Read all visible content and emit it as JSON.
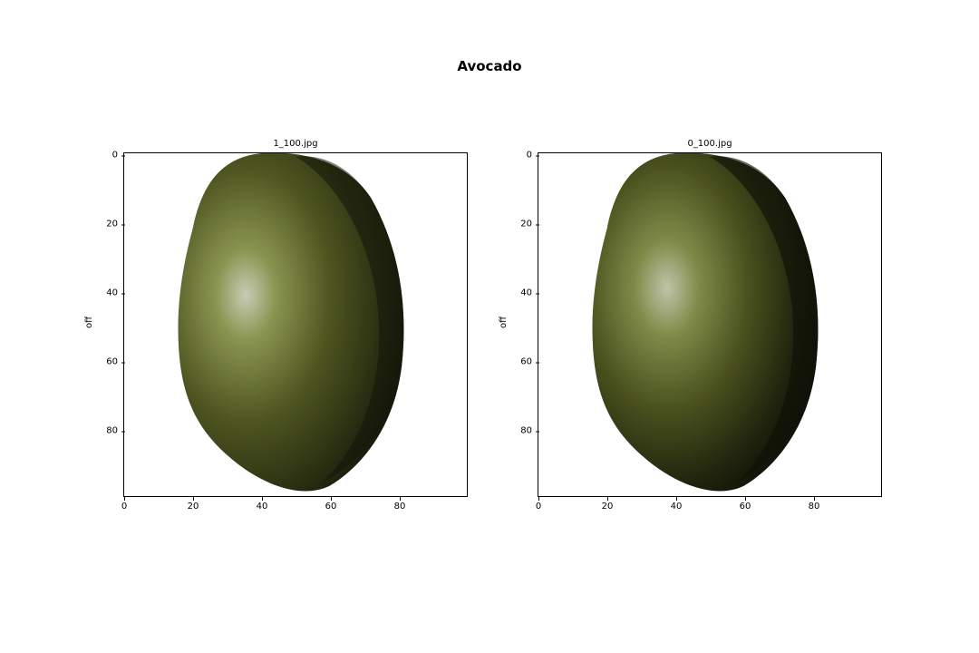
{
  "figure": {
    "title": "Avocado",
    "panels": [
      {
        "subtitle": "1_100.jpg",
        "ylabel": "off",
        "image": "avocado-photo",
        "xticks": [
          "0",
          "20",
          "40",
          "60",
          "80"
        ],
        "yticks": [
          "0",
          "20",
          "40",
          "60",
          "80"
        ]
      },
      {
        "subtitle": "0_100.jpg",
        "ylabel": "off",
        "image": "avocado-photo",
        "xticks": [
          "0",
          "20",
          "40",
          "60",
          "80"
        ],
        "yticks": [
          "0",
          "20",
          "40",
          "60",
          "80"
        ]
      }
    ]
  },
  "colors": {
    "skin_light": "#8a9450",
    "skin_mid": "#4e5520",
    "skin_dark": "#1a1c0c",
    "highlight": "#c8cbb4"
  }
}
